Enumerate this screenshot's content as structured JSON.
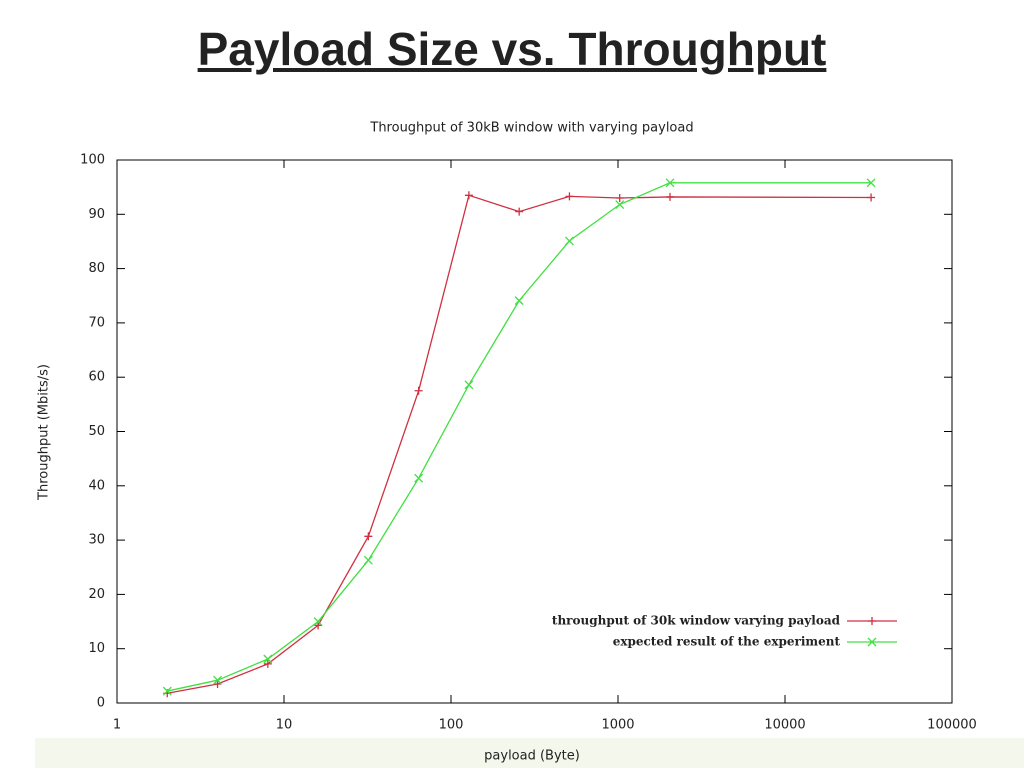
{
  "slide_title": "Payload Size vs. Throughput",
  "chart_data": {
    "type": "line",
    "title": "Throughput of 30kB window with varying payload",
    "x_label": "payload (Byte)",
    "y_label": "Throughput (Mbits/s)",
    "x": [
      2,
      4,
      8,
      16,
      32,
      64,
      128,
      256,
      512,
      1024,
      2048,
      32768
    ],
    "series": [
      {
        "name": "throughput of 30k window varying payload",
        "color": "#d03040",
        "marker": "+",
        "values": [
          1.8,
          3.5,
          7.2,
          14.3,
          30.7,
          57.5,
          93.5,
          90.5,
          93.3,
          93.0,
          93.2,
          93.1
        ]
      },
      {
        "name": "expected result of the experiment",
        "color": "#40e040",
        "marker": "x",
        "values": [
          2.2,
          4.2,
          8.1,
          15.0,
          26.3,
          41.4,
          58.6,
          74.1,
          85.1,
          91.8,
          95.8,
          95.8
        ]
      }
    ],
    "xscale": "log",
    "xlim": [
      1,
      100000
    ],
    "xticks": [
      1,
      10,
      100,
      1000,
      10000,
      100000
    ],
    "ylim": [
      0,
      100
    ],
    "yticks": [
      0,
      10,
      20,
      30,
      40,
      50,
      60,
      70,
      80,
      90,
      100
    ],
    "legend": "lower right"
  }
}
